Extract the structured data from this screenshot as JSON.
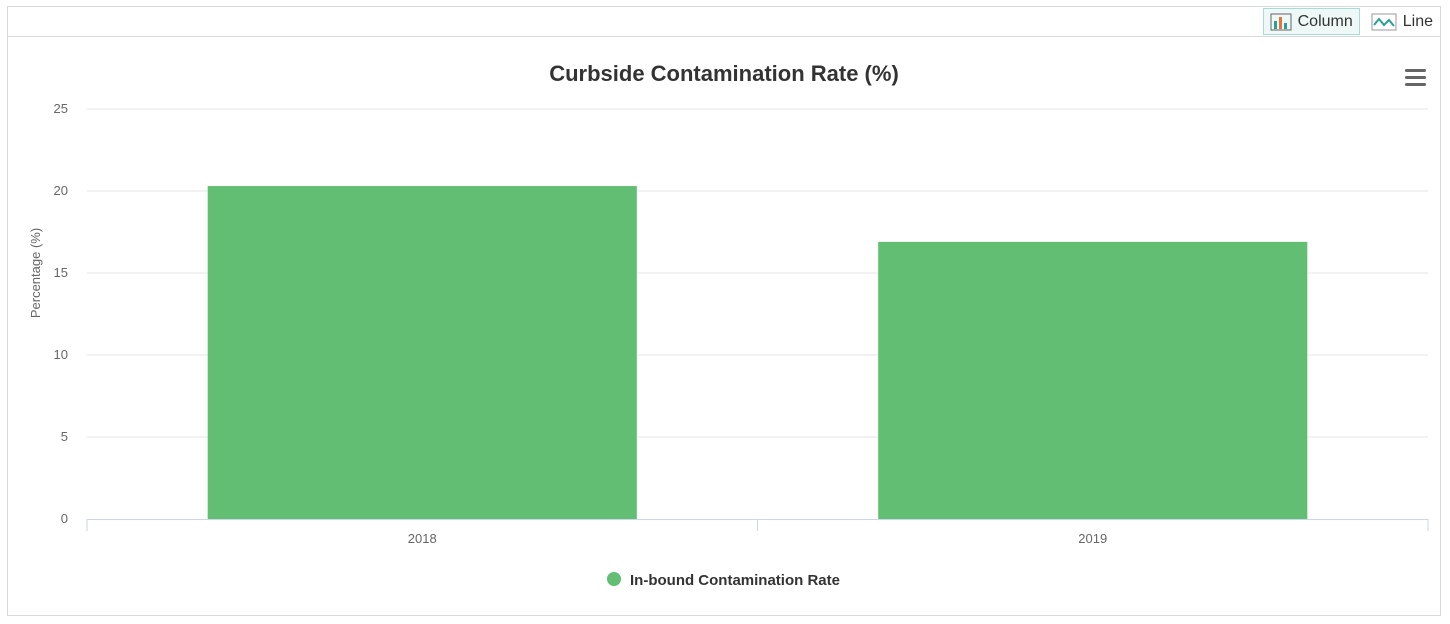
{
  "toolbar": {
    "column_label": "Column",
    "line_label": "Line",
    "active": "column"
  },
  "colors": {
    "bar": "#61be72",
    "grid": "#e6e6e6",
    "axis": "#ccd6eb",
    "toggle_accent": "#2aa198"
  },
  "chart_data": {
    "type": "bar",
    "title": "Curbside Contamination Rate (%)",
    "xlabel": "",
    "ylabel": "Percentage (%)",
    "categories": [
      "2018",
      "2019"
    ],
    "series": [
      {
        "name": "In-bound Contamination Rate",
        "values": [
          20.3,
          16.9
        ]
      }
    ],
    "ylim": [
      0,
      25
    ],
    "yticks": [
      0,
      5,
      10,
      15,
      20,
      25
    ],
    "grid": true,
    "legend": "bottom-center"
  }
}
